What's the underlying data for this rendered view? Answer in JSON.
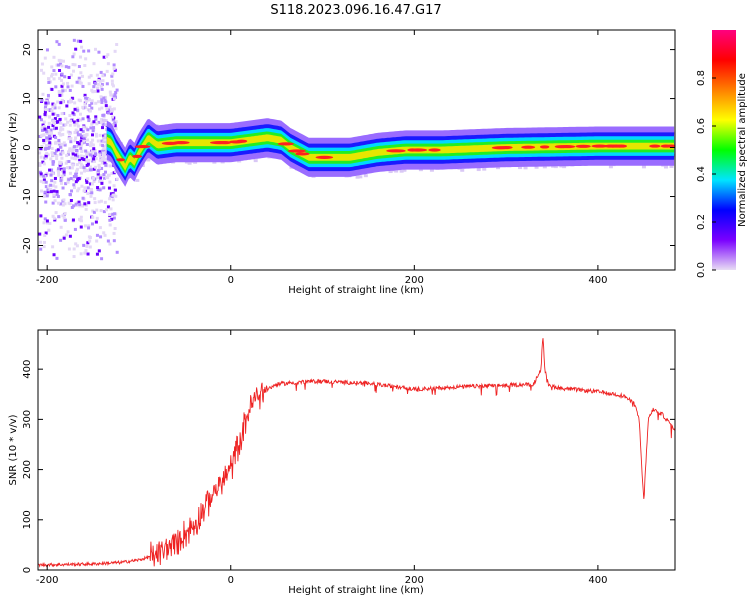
{
  "figure": {
    "title": "S118.2023.096.16.47.G17"
  },
  "chart_data": [
    {
      "type": "heatmap",
      "xlabel": "Height of straight line (km)",
      "ylabel": "Frequency (Hz)",
      "xlim": [
        -210,
        484
      ],
      "ylim": [
        -25,
        24
      ],
      "xticks": [
        -200,
        0,
        200,
        400
      ],
      "yticks": [
        -20,
        -10,
        0,
        10,
        20
      ],
      "colorbar": {
        "label": "Normalized spectral amplitude",
        "range": [
          0,
          1
        ],
        "ticks": [
          0.0,
          0.2,
          0.4,
          0.6,
          0.8
        ],
        "tick_labels": [
          "0.0",
          "0.2",
          "0.4",
          "0.6",
          "0.8"
        ],
        "colormap": [
          "#e8ddf4",
          "#7a00ff",
          "#0000ff",
          "#00e5ff",
          "#00ff00",
          "#ffff00",
          "#ff8000",
          "#ff0000",
          "#ff007f"
        ]
      },
      "ridge_frequency": {
        "x": [
          -200,
          -160,
          -140,
          -130,
          -125,
          -120,
          -115,
          -110,
          -105,
          -100,
          -90,
          -80,
          -60,
          -30,
          0,
          20,
          40,
          55,
          65,
          75,
          85,
          100,
          130,
          160,
          190,
          230,
          300,
          400,
          484
        ],
        "y": [
          1,
          1,
          2,
          1,
          -1,
          -2.5,
          -4,
          -2,
          -3,
          -1,
          2,
          0.5,
          1,
          1,
          1,
          1.5,
          2,
          1.5,
          0,
          -1,
          -2,
          -2,
          -2,
          -1,
          -0.5,
          -0.5,
          0,
          0.3,
          0.3
        ]
      },
      "grid": false,
      "legend": "none"
    },
    {
      "type": "line",
      "xlabel": "Height of straight line (km)",
      "ylabel": "SNR (10 * v/v)",
      "xlim": [
        -210,
        484
      ],
      "ylim": [
        0,
        478
      ],
      "xticks": [
        -200,
        0,
        200,
        400
      ],
      "yticks": [
        0,
        100,
        200,
        300,
        400
      ],
      "series": [
        {
          "color": "#ee2222",
          "x": [
            -210,
            -150,
            -120,
            -100,
            -80,
            -60,
            -40,
            -20,
            0,
            10,
            20,
            30,
            50,
            80,
            100,
            120,
            150,
            200,
            250,
            300,
            330,
            338,
            340,
            342,
            346,
            360,
            400,
            420,
            430,
            440,
            445,
            448,
            450,
            455,
            460,
            470,
            484
          ],
          "y": [
            10,
            12,
            15,
            20,
            30,
            55,
            90,
            150,
            200,
            260,
            320,
            350,
            370,
            375,
            376,
            374,
            372,
            360,
            365,
            368,
            370,
            400,
            470,
            400,
            368,
            362,
            355,
            350,
            345,
            330,
            300,
            200,
            140,
            300,
            320,
            310,
            280
          ]
        }
      ],
      "grid": false,
      "legend": "none"
    }
  ]
}
